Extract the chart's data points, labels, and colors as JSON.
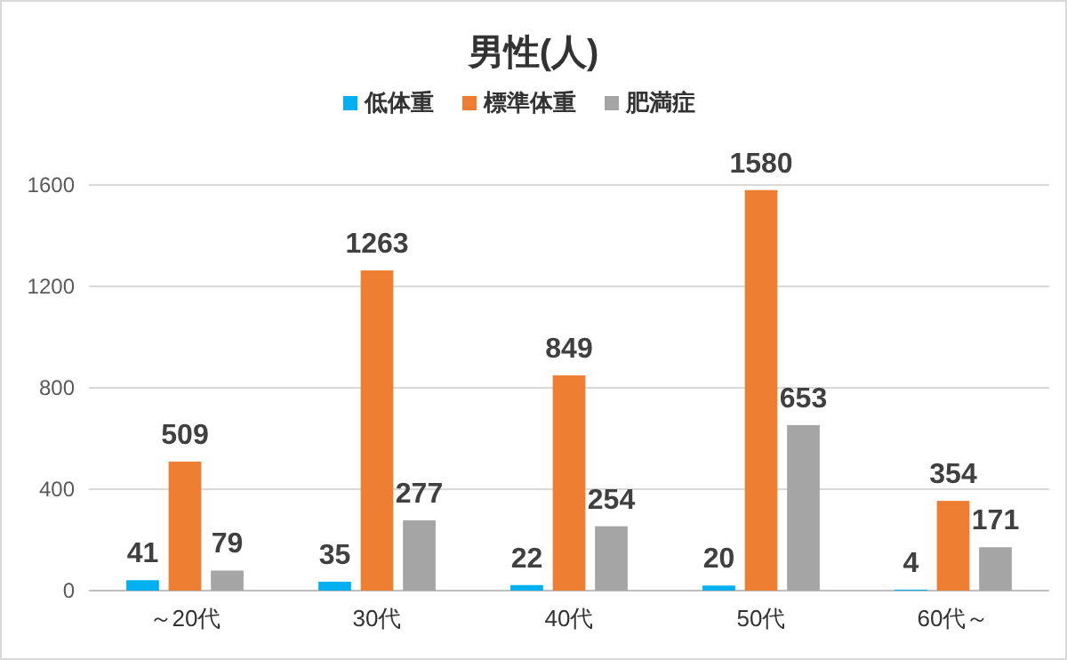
{
  "chart_data": {
    "type": "bar",
    "title": "男性(人)",
    "categories": [
      "～20代",
      "30代",
      "40代",
      "50代",
      "60代～"
    ],
    "series": [
      {
        "name": "低体重",
        "color": "#00b0f0",
        "values": [
          41,
          35,
          22,
          20,
          4
        ]
      },
      {
        "name": "標準体重",
        "color": "#ed7d31",
        "values": [
          509,
          1263,
          849,
          1580,
          354
        ]
      },
      {
        "name": "肥満症",
        "color": "#a5a5a5",
        "values": [
          79,
          277,
          254,
          653,
          171
        ]
      }
    ],
    "ylim": [
      0,
      1600
    ],
    "yticks": [
      0,
      400,
      800,
      1200,
      1600
    ],
    "grid": "y",
    "legend": "top",
    "data_labels": true
  }
}
